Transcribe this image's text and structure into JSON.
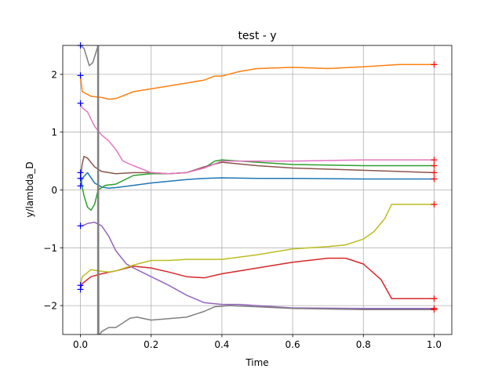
{
  "chart_data": {
    "type": "line",
    "title": "test - y",
    "xlabel": "Time",
    "ylabel": "y/lambda_D",
    "xlim": [
      -0.05,
      1.05
    ],
    "ylim": [
      -2.5,
      2.5
    ],
    "xticks": [
      0.0,
      0.2,
      0.4,
      0.6,
      0.8,
      1.0
    ],
    "xtick_labels": [
      "0.0",
      "0.2",
      "0.4",
      "0.6",
      "0.8",
      "1.0"
    ],
    "yticks": [
      -2,
      -1,
      0,
      1,
      2
    ],
    "ytick_labels": [
      "−2",
      "−1",
      "0",
      "1",
      "2"
    ],
    "grid": true,
    "vertical_line": {
      "x": 0.05,
      "color": "#7f7f7f"
    },
    "start_marker_color": "#0000ff",
    "end_marker_color": "#ff0000",
    "series": [
      {
        "color": "#1f77b4",
        "x": [
          0,
          0.005,
          0.02,
          0.04,
          0.06,
          0.08,
          0.1,
          0.15,
          0.2,
          0.25,
          0.3,
          0.35,
          0.4,
          0.5,
          0.6,
          0.8,
          1.0
        ],
        "y": [
          0.07,
          0.2,
          0.3,
          0.12,
          0.05,
          0.03,
          0.04,
          0.08,
          0.12,
          0.15,
          0.18,
          0.2,
          0.21,
          0.2,
          0.2,
          0.19,
          0.19
        ]
      },
      {
        "color": "#ff7f0e",
        "x": [
          0,
          0.005,
          0.03,
          0.06,
          0.08,
          0.1,
          0.15,
          0.2,
          0.25,
          0.3,
          0.35,
          0.38,
          0.4,
          0.45,
          0.5,
          0.6,
          0.7,
          0.8,
          0.9,
          1.0
        ],
        "y": [
          1.98,
          1.7,
          1.62,
          1.6,
          1.57,
          1.58,
          1.7,
          1.75,
          1.8,
          1.85,
          1.9,
          1.97,
          1.97,
          2.05,
          2.1,
          2.12,
          2.1,
          2.13,
          2.17,
          2.17
        ]
      },
      {
        "color": "#2ca02c",
        "x": [
          0,
          0.005,
          0.01,
          0.02,
          0.03,
          0.04,
          0.05,
          0.07,
          0.1,
          0.15,
          0.2,
          0.25,
          0.3,
          0.35,
          0.38,
          0.4,
          0.5,
          0.6,
          0.8,
          1.0
        ],
        "y": [
          0.3,
          0.05,
          -0.1,
          -0.3,
          -0.35,
          -0.25,
          0.0,
          0.08,
          0.1,
          0.25,
          0.28,
          0.28,
          0.3,
          0.38,
          0.5,
          0.52,
          0.48,
          0.44,
          0.42,
          0.42
        ]
      },
      {
        "color": "#d62728",
        "x": [
          0,
          0.005,
          0.03,
          0.06,
          0.1,
          0.15,
          0.2,
          0.25,
          0.3,
          0.35,
          0.4,
          0.5,
          0.6,
          0.7,
          0.75,
          0.8,
          0.85,
          0.88,
          1.0
        ],
        "y": [
          -1.72,
          -1.62,
          -1.5,
          -1.45,
          -1.4,
          -1.32,
          -1.35,
          -1.42,
          -1.5,
          -1.52,
          -1.45,
          -1.35,
          -1.25,
          -1.18,
          -1.18,
          -1.28,
          -1.55,
          -1.88,
          -1.88
        ]
      },
      {
        "color": "#9467bd",
        "x": [
          0,
          0.005,
          0.02,
          0.04,
          0.06,
          0.08,
          0.1,
          0.13,
          0.15,
          0.2,
          0.25,
          0.3,
          0.35,
          0.4,
          0.45,
          0.5,
          0.6,
          0.8,
          1.0
        ],
        "y": [
          -0.62,
          -0.62,
          -0.58,
          -0.56,
          -0.62,
          -0.8,
          -1.05,
          -1.28,
          -1.35,
          -1.5,
          -1.65,
          -1.82,
          -1.95,
          -1.98,
          -1.98,
          -2.0,
          -2.04,
          -2.05,
          -2.05
        ]
      },
      {
        "color": "#8c564b",
        "x": [
          0,
          0.005,
          0.01,
          0.02,
          0.04,
          0.06,
          0.1,
          0.15,
          0.2,
          0.25,
          0.3,
          0.35,
          0.4,
          0.5,
          0.6,
          0.8,
          1.0
        ],
        "y": [
          0.2,
          0.45,
          0.58,
          0.55,
          0.4,
          0.32,
          0.28,
          0.3,
          0.3,
          0.28,
          0.3,
          0.4,
          0.48,
          0.42,
          0.38,
          0.34,
          0.3
        ]
      },
      {
        "color": "#e377c2",
        "x": [
          0,
          0.005,
          0.02,
          0.04,
          0.06,
          0.08,
          0.1,
          0.12,
          0.15,
          0.2,
          0.25,
          0.3,
          0.35,
          0.4,
          0.5,
          0.6,
          0.8,
          1.0
        ],
        "y": [
          1.5,
          1.42,
          1.35,
          1.1,
          0.95,
          0.85,
          0.7,
          0.5,
          0.42,
          0.3,
          0.28,
          0.3,
          0.38,
          0.5,
          0.5,
          0.5,
          0.52,
          0.52
        ]
      },
      {
        "color": "#7f7f7f",
        "x": [
          0.0,
          0.01,
          0.02,
          0.025,
          0.035,
          0.045,
          0.05,
          0.052,
          0.055,
          0.06,
          0.08,
          0.1,
          0.12,
          0.14,
          0.16,
          0.2,
          0.3,
          0.35,
          0.38,
          0.42,
          0.5,
          0.6,
          0.8,
          1.0
        ],
        "y": [
          2.5,
          2.45,
          2.25,
          2.15,
          2.2,
          2.4,
          2.5,
          -2.5,
          -2.5,
          -2.45,
          -2.38,
          -2.38,
          -2.3,
          -2.22,
          -2.2,
          -2.25,
          -2.2,
          -2.1,
          -2.02,
          -2.0,
          -2.02,
          -2.05,
          -2.07,
          -2.07
        ]
      },
      {
        "color": "#bcbd22",
        "x": [
          0,
          0.005,
          0.03,
          0.05,
          0.08,
          0.1,
          0.15,
          0.2,
          0.25,
          0.3,
          0.4,
          0.5,
          0.6,
          0.7,
          0.75,
          0.8,
          0.83,
          0.86,
          0.88,
          1.0
        ],
        "y": [
          -1.65,
          -1.5,
          -1.38,
          -1.4,
          -1.42,
          -1.4,
          -1.3,
          -1.22,
          -1.22,
          -1.2,
          -1.2,
          -1.12,
          -1.02,
          -0.98,
          -0.95,
          -0.85,
          -0.72,
          -0.5,
          -0.25,
          -0.25
        ]
      }
    ]
  }
}
